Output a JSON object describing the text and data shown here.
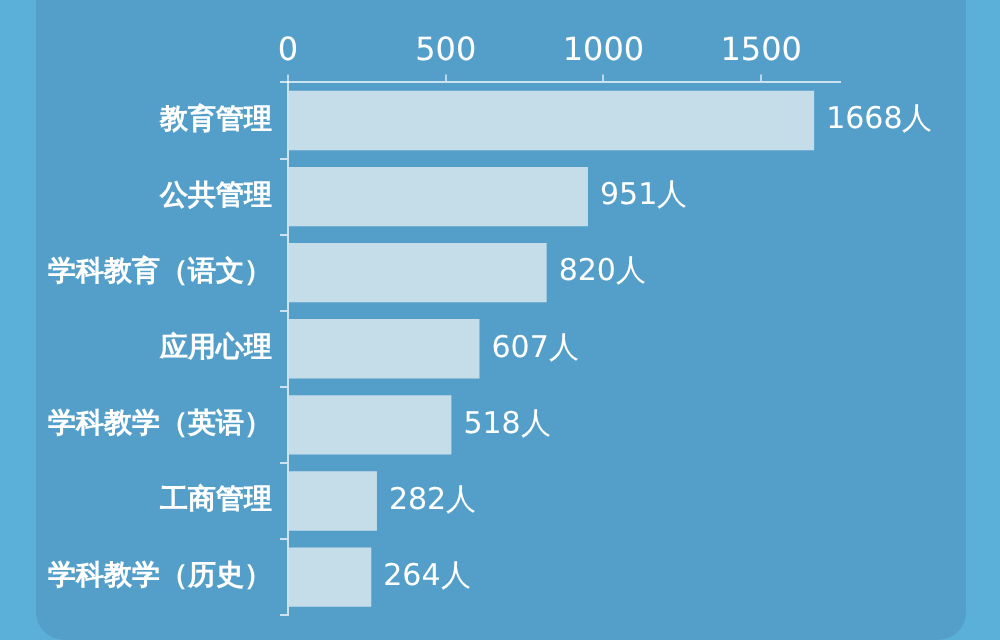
{
  "chart_data": {
    "type": "bar",
    "orientation": "horizontal",
    "categories": [
      "教育管理",
      "公共管理",
      "学科教育（语文）",
      "应用心理",
      "学科教学（英语）",
      "工商管理",
      "学科教学（历史）"
    ],
    "values": [
      1668,
      951,
      820,
      607,
      518,
      282,
      264
    ],
    "value_labels": [
      "1668人",
      "951人",
      "820人",
      "607人",
      "518人",
      "282人",
      "264人"
    ],
    "color": "#c5dde9",
    "xlim": [
      0,
      1750
    ],
    "xticks": [
      0,
      500,
      1000,
      1500
    ],
    "grid": false,
    "legend": false
  }
}
